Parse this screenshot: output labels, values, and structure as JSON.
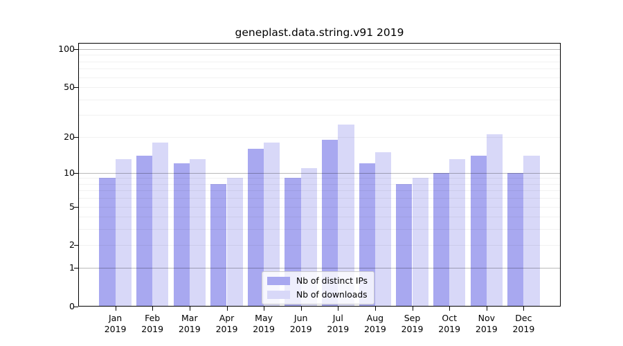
{
  "title": "geneplast.data.string.v91 2019",
  "chart_data": {
    "type": "bar",
    "title": "geneplast.data.string.v91 2019",
    "categories": [
      "Jan",
      "Feb",
      "Mar",
      "Apr",
      "May",
      "Jun",
      "Jul",
      "Aug",
      "Sep",
      "Oct",
      "Nov",
      "Dec"
    ],
    "x_tick_second_line": "2019",
    "series": [
      {
        "name": "Nb of distinct IPs",
        "color": "#a8a8f0",
        "values": [
          9,
          14,
          12,
          8,
          16,
          9,
          19,
          12,
          8,
          10,
          14,
          10
        ]
      },
      {
        "name": "Nb of downloads",
        "color": "#d8d8f8",
        "values": [
          13,
          18,
          13,
          9,
          18,
          11,
          25,
          15,
          9,
          13,
          21,
          14
        ]
      }
    ],
    "xlabel": "",
    "ylabel": "",
    "yscale": "log1p",
    "ylim": [
      0,
      115
    ],
    "ytick_labels": [
      100,
      50,
      20,
      10,
      5,
      2,
      1,
      0
    ],
    "major_gridlines": [
      1,
      10,
      100
    ],
    "minor_gridlines": [
      2,
      3,
      4,
      5,
      6,
      7,
      8,
      9,
      20,
      30,
      40,
      50,
      60,
      70,
      80,
      90
    ],
    "grid": true,
    "legend_position": "lower center"
  }
}
